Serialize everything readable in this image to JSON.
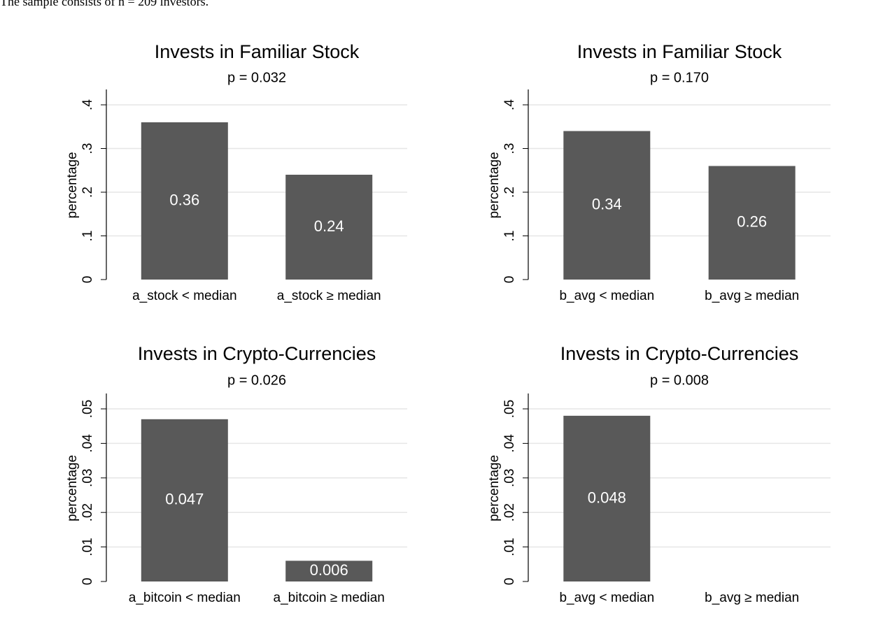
{
  "note_text": "The sample consists of n = 209 investors.",
  "chart_data": [
    {
      "type": "bar",
      "title": "Invests in Familiar Stock",
      "subtitle": "p = 0.032",
      "ylabel": "percentage",
      "categories": [
        "a_stock < median",
        "a_stock ≥ median"
      ],
      "values": [
        0.36,
        0.24
      ],
      "value_labels": [
        "0.36",
        "0.24"
      ],
      "color": "#595959",
      "ylim": [
        0,
        0.4
      ],
      "yticks": [
        0,
        {
          "value": 0.1,
          "label": ".1"
        },
        {
          "value": 0.2,
          "label": ".2"
        },
        {
          "value": 0.3,
          "label": ".3"
        },
        {
          "value": 0.4,
          "label": ".4"
        }
      ],
      "grid": true
    },
    {
      "type": "bar",
      "title": "Invests in Familiar Stock",
      "subtitle": "p = 0.170",
      "ylabel": "percentage",
      "categories": [
        "b_avg < median",
        "b_avg ≥ median"
      ],
      "values": [
        0.34,
        0.26
      ],
      "value_labels": [
        "0.34",
        "0.26"
      ],
      "color": "#595959",
      "ylim": [
        0,
        0.4
      ],
      "yticks": [
        0,
        {
          "value": 0.1,
          "label": ".1"
        },
        {
          "value": 0.2,
          "label": ".2"
        },
        {
          "value": 0.3,
          "label": ".3"
        },
        {
          "value": 0.4,
          "label": ".4"
        }
      ],
      "grid": true
    },
    {
      "type": "bar",
      "title": "Invests in Crypto-Currencies",
      "subtitle": "p = 0.026",
      "ylabel": "percentage",
      "categories": [
        "a_bitcoin < median",
        "a_bitcoin ≥ median"
      ],
      "values": [
        0.047,
        0.006
      ],
      "value_labels": [
        "0.047",
        "0.006"
      ],
      "color": "#595959",
      "ylim": [
        0,
        0.05
      ],
      "yticks": [
        0,
        {
          "value": 0.01,
          "label": ".01"
        },
        {
          "value": 0.02,
          "label": ".02"
        },
        {
          "value": 0.03,
          "label": ".03"
        },
        {
          "value": 0.04,
          "label": ".04"
        },
        {
          "value": 0.05,
          "label": ".05"
        }
      ],
      "grid": true
    },
    {
      "type": "bar",
      "title": "Invests in Crypto-Currencies",
      "subtitle": "p = 0.008",
      "ylabel": "percentage",
      "categories": [
        "b_avg < median",
        "b_avg ≥ median"
      ],
      "values": [
        0.048,
        0
      ],
      "value_labels": [
        "0.048",
        null
      ],
      "color": "#595959",
      "ylim": [
        0,
        0.05
      ],
      "yticks": [
        0,
        {
          "value": 0.01,
          "label": ".01"
        },
        {
          "value": 0.02,
          "label": ".02"
        },
        {
          "value": 0.03,
          "label": ".03"
        },
        {
          "value": 0.04,
          "label": ".04"
        },
        {
          "value": 0.05,
          "label": ".05"
        }
      ],
      "grid": true
    }
  ]
}
